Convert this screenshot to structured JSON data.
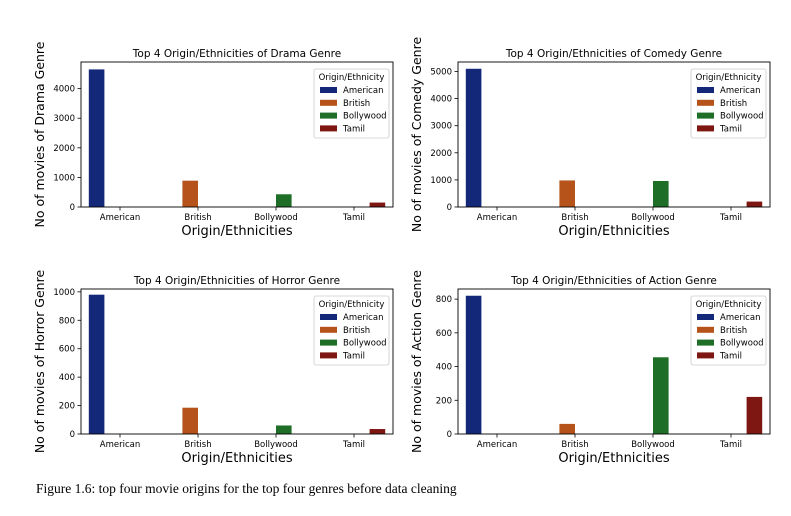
{
  "colors": {
    "American": "#14287a",
    "British": "#b5531b",
    "Bollywood": "#1f6e27",
    "Tamil": "#7e1712"
  },
  "legend_title": "Origin/Ethnicity",
  "caption": "Figure 1.6: top four movie origins  for the top four genres before data cleaning",
  "chart_data": [
    {
      "type": "bar",
      "title": "Top 4 Origin/Ethnicities of Drama Genre",
      "xlabel": "Origin/Ethnicities",
      "ylabel": "No of movies of Drama Genre",
      "categories": [
        "American",
        "British",
        "Bollywood",
        "Tamil"
      ],
      "values": [
        4650,
        890,
        430,
        150
      ],
      "ylim": [
        0,
        4900
      ],
      "yticks": [
        0,
        1000,
        2000,
        3000,
        4000
      ],
      "legend": [
        "American",
        "British",
        "Bollywood",
        "Tamil"
      ],
      "legend_position": "top-right",
      "grid": false
    },
    {
      "type": "bar",
      "title": "Top 4 Origin/Ethnicities of Comedy Genre",
      "xlabel": "Origin/Ethnicities",
      "ylabel": "No of movies of Comedy Genre",
      "categories": [
        "American",
        "British",
        "Bollywood",
        "Tamil"
      ],
      "values": [
        5100,
        980,
        960,
        200
      ],
      "ylim": [
        0,
        5350
      ],
      "yticks": [
        0,
        1000,
        2000,
        3000,
        4000,
        5000
      ],
      "legend": [
        "American",
        "British",
        "Bollywood",
        "Tamil"
      ],
      "legend_position": "top-right",
      "grid": false
    },
    {
      "type": "bar",
      "title": "Top 4 Origin/Ethnicities of Horror Genre",
      "xlabel": "Origin/Ethnicities",
      "ylabel": "No of movies of Horror Genre",
      "categories": [
        "American",
        "British",
        "Bollywood",
        "Tamil"
      ],
      "values": [
        980,
        185,
        60,
        35
      ],
      "ylim": [
        0,
        1020
      ],
      "yticks": [
        0,
        200,
        400,
        600,
        800,
        1000
      ],
      "legend": [
        "American",
        "British",
        "Bollywood",
        "Tamil"
      ],
      "legend_position": "top-right",
      "grid": false
    },
    {
      "type": "bar",
      "title": "Top 4 Origin/Ethnicities of Action Genre",
      "xlabel": "Origin/Ethnicities",
      "ylabel": "No of movies of Action Genre",
      "categories": [
        "American",
        "British",
        "Bollywood",
        "Tamil"
      ],
      "values": [
        820,
        60,
        455,
        220
      ],
      "ylim": [
        0,
        860
      ],
      "yticks": [
        0,
        200,
        400,
        600,
        800
      ],
      "legend": [
        "American",
        "British",
        "Bollywood",
        "Tamil"
      ],
      "legend_position": "top-right",
      "grid": false
    }
  ]
}
